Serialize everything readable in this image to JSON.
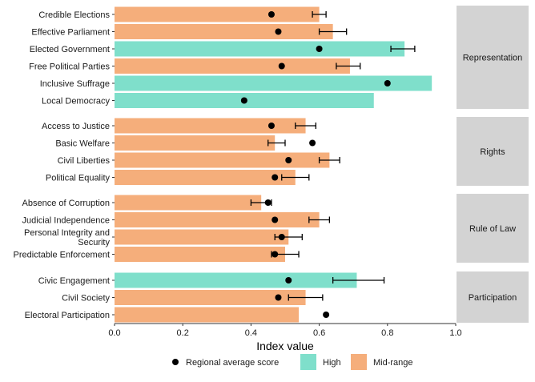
{
  "chart_data": {
    "type": "bar",
    "orientation": "horizontal",
    "xlabel": "Index value",
    "xlim": [
      0,
      1.0
    ],
    "x_ticks": [
      "0.0",
      "0.2",
      "0.4",
      "0.6",
      "0.8",
      "1.0"
    ],
    "grid": false,
    "legend_placement": "bottom",
    "legend": {
      "point_label": "Regional average score",
      "items": [
        {
          "label": "High",
          "color": "#7FDFCB"
        },
        {
          "label": "Mid-range",
          "color": "#F5AE7B"
        }
      ]
    },
    "panel_color": "#D3D3D3",
    "facets": [
      {
        "name": "Representation",
        "rows": [
          {
            "label": "Credible Elections",
            "value": 0.6,
            "category": "Mid-range",
            "average": 0.46,
            "err": [
              0.58,
              0.62
            ]
          },
          {
            "label": "Effective Parliament",
            "value": 0.64,
            "category": "Mid-range",
            "average": 0.48,
            "err": [
              0.6,
              0.68
            ]
          },
          {
            "label": "Elected Government",
            "value": 0.85,
            "category": "High",
            "average": 0.6,
            "err": [
              0.81,
              0.88
            ]
          },
          {
            "label": "Free Political Parties",
            "value": 0.69,
            "category": "Mid-range",
            "average": 0.49,
            "err": [
              0.65,
              0.72
            ]
          },
          {
            "label": "Inclusive Suffrage",
            "value": 0.93,
            "category": "High",
            "average": 0.8,
            "err": null
          },
          {
            "label": "Local Democracy",
            "value": 0.76,
            "category": "High",
            "average": 0.38,
            "err": null
          }
        ]
      },
      {
        "name": "Rights",
        "rows": [
          {
            "label": "Access to Justice",
            "value": 0.56,
            "category": "Mid-range",
            "average": 0.46,
            "err": [
              0.53,
              0.59
            ]
          },
          {
            "label": "Basic Welfare",
            "value": 0.47,
            "category": "Mid-range",
            "average": 0.58,
            "err": [
              0.45,
              0.5
            ]
          },
          {
            "label": "Civil Liberties",
            "value": 0.63,
            "category": "Mid-range",
            "average": 0.51,
            "err": [
              0.6,
              0.66
            ]
          },
          {
            "label": "Political Equality",
            "value": 0.53,
            "category": "Mid-range",
            "average": 0.47,
            "err": [
              0.49,
              0.57
            ]
          }
        ]
      },
      {
        "name": "Rule of Law",
        "rows": [
          {
            "label": "Absence of Corruption",
            "value": 0.43,
            "category": "Mid-range",
            "average": 0.45,
            "err": [
              0.4,
              0.46
            ]
          },
          {
            "label": "Judicial Independence",
            "value": 0.6,
            "category": "Mid-range",
            "average": 0.47,
            "err": [
              0.57,
              0.63
            ]
          },
          {
            "label": "Personal Integrity and\nSecurity",
            "value": 0.51,
            "category": "Mid-range",
            "average": 0.49,
            "err": [
              0.47,
              0.55
            ]
          },
          {
            "label": "Predictable Enforcement",
            "value": 0.5,
            "category": "Mid-range",
            "average": 0.47,
            "err": [
              0.46,
              0.54
            ]
          }
        ]
      },
      {
        "name": "Participation",
        "rows": [
          {
            "label": "Civic Engagement",
            "value": 0.71,
            "category": "High",
            "average": 0.51,
            "err": [
              0.64,
              0.79
            ]
          },
          {
            "label": "Civil Society",
            "value": 0.56,
            "category": "Mid-range",
            "average": 0.48,
            "err": [
              0.51,
              0.61
            ]
          },
          {
            "label": "Electoral Participation",
            "value": 0.54,
            "category": "Mid-range",
            "average": 0.62,
            "err": null
          }
        ]
      }
    ]
  }
}
